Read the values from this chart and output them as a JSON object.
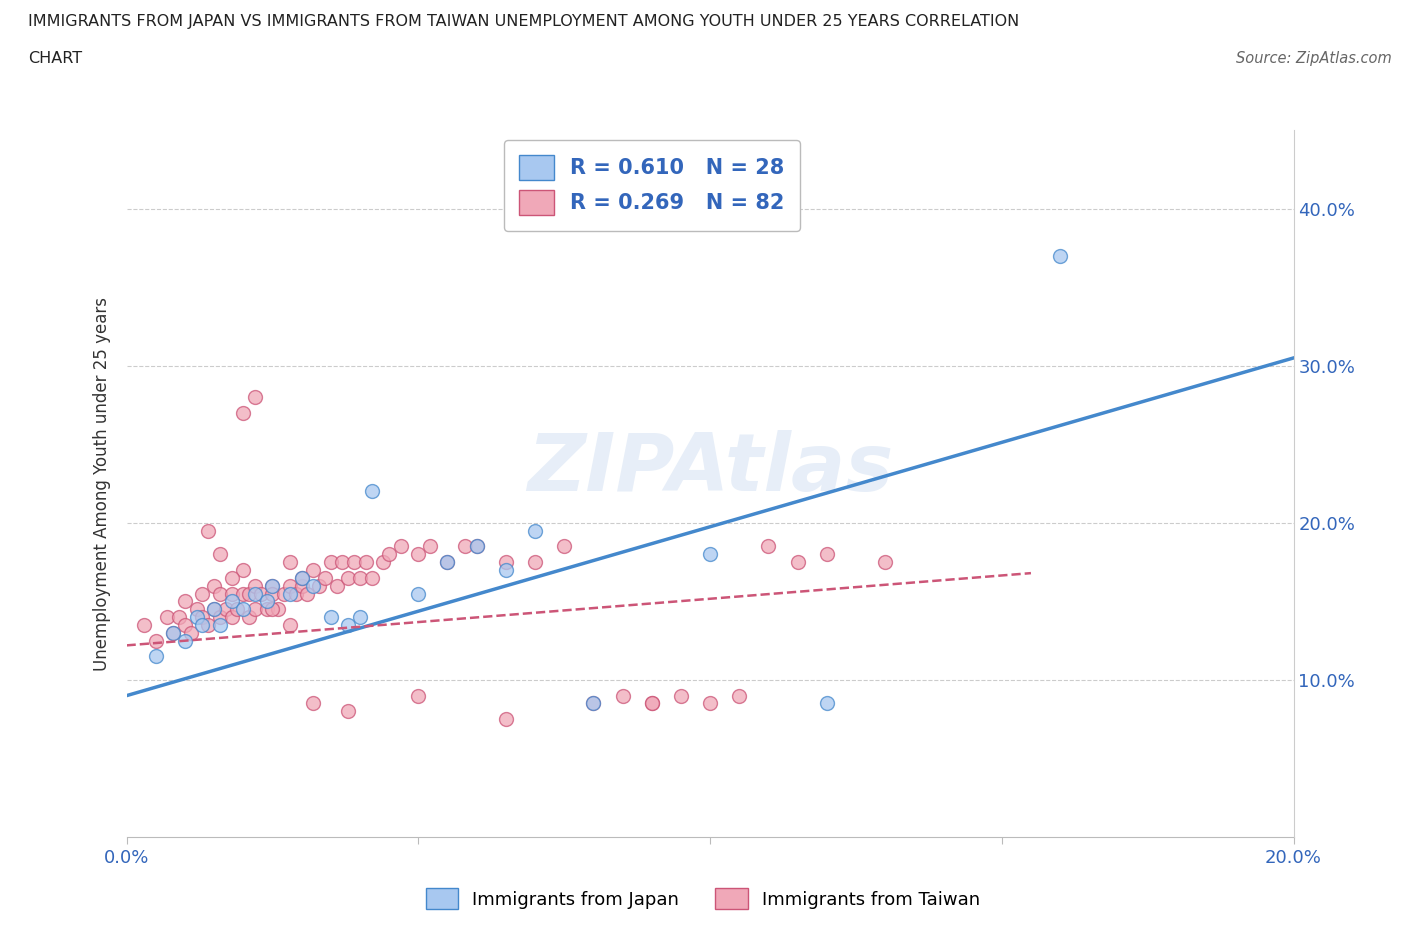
{
  "title_line1": "IMMIGRANTS FROM JAPAN VS IMMIGRANTS FROM TAIWAN UNEMPLOYMENT AMONG YOUTH UNDER 25 YEARS CORRELATION",
  "title_line2": "CHART",
  "source_text": "Source: ZipAtlas.com",
  "ylabel": "Unemployment Among Youth under 25 years",
  "xlim": [
    0.0,
    0.2
  ],
  "ylim": [
    0.0,
    0.45
  ],
  "xticks": [
    0.0,
    0.05,
    0.1,
    0.15,
    0.2
  ],
  "yticks": [
    0.0,
    0.1,
    0.2,
    0.3,
    0.4
  ],
  "r_japan": 0.61,
  "n_japan": 28,
  "r_taiwan": 0.269,
  "n_taiwan": 82,
  "japan_color": "#a8c8f0",
  "taiwan_color": "#f0a8b8",
  "japan_line_color": "#4488cc",
  "taiwan_line_color": "#cc5577",
  "japan_line_x0": 0.0,
  "japan_line_y0": 0.09,
  "japan_line_x1": 0.2,
  "japan_line_y1": 0.305,
  "taiwan_line_x0": 0.0,
  "taiwan_line_y0": 0.122,
  "taiwan_line_x1": 0.155,
  "taiwan_line_y1": 0.168,
  "japan_scatter_x": [
    0.005,
    0.008,
    0.01,
    0.012,
    0.013,
    0.015,
    0.016,
    0.018,
    0.02,
    0.022,
    0.024,
    0.025,
    0.028,
    0.03,
    0.032,
    0.035,
    0.038,
    0.04,
    0.042,
    0.05,
    0.055,
    0.06,
    0.065,
    0.07,
    0.08,
    0.1,
    0.12,
    0.16
  ],
  "japan_scatter_y": [
    0.115,
    0.13,
    0.125,
    0.14,
    0.135,
    0.145,
    0.135,
    0.15,
    0.145,
    0.155,
    0.15,
    0.16,
    0.155,
    0.165,
    0.16,
    0.14,
    0.135,
    0.14,
    0.22,
    0.155,
    0.175,
    0.185,
    0.17,
    0.195,
    0.085,
    0.18,
    0.085,
    0.37
  ],
  "taiwan_scatter_x": [
    0.003,
    0.005,
    0.007,
    0.008,
    0.009,
    0.01,
    0.01,
    0.011,
    0.012,
    0.013,
    0.013,
    0.014,
    0.015,
    0.015,
    0.016,
    0.016,
    0.017,
    0.018,
    0.018,
    0.019,
    0.02,
    0.02,
    0.021,
    0.021,
    0.022,
    0.022,
    0.023,
    0.024,
    0.025,
    0.025,
    0.026,
    0.027,
    0.028,
    0.028,
    0.029,
    0.03,
    0.03,
    0.031,
    0.032,
    0.033,
    0.034,
    0.035,
    0.036,
    0.037,
    0.038,
    0.039,
    0.04,
    0.041,
    0.042,
    0.044,
    0.045,
    0.047,
    0.05,
    0.052,
    0.055,
    0.058,
    0.06,
    0.065,
    0.07,
    0.075,
    0.08,
    0.085,
    0.09,
    0.095,
    0.1,
    0.105,
    0.11,
    0.115,
    0.12,
    0.13,
    0.014,
    0.016,
    0.018,
    0.02,
    0.022,
    0.025,
    0.028,
    0.032,
    0.038,
    0.05,
    0.065,
    0.09
  ],
  "taiwan_scatter_y": [
    0.135,
    0.125,
    0.14,
    0.13,
    0.14,
    0.135,
    0.15,
    0.13,
    0.145,
    0.14,
    0.155,
    0.135,
    0.145,
    0.16,
    0.14,
    0.155,
    0.145,
    0.14,
    0.155,
    0.145,
    0.155,
    0.17,
    0.14,
    0.155,
    0.145,
    0.16,
    0.155,
    0.145,
    0.16,
    0.155,
    0.145,
    0.155,
    0.16,
    0.175,
    0.155,
    0.16,
    0.165,
    0.155,
    0.17,
    0.16,
    0.165,
    0.175,
    0.16,
    0.175,
    0.165,
    0.175,
    0.165,
    0.175,
    0.165,
    0.175,
    0.18,
    0.185,
    0.18,
    0.185,
    0.175,
    0.185,
    0.185,
    0.175,
    0.175,
    0.185,
    0.085,
    0.09,
    0.085,
    0.09,
    0.085,
    0.09,
    0.185,
    0.175,
    0.18,
    0.175,
    0.195,
    0.18,
    0.165,
    0.27,
    0.28,
    0.145,
    0.135,
    0.085,
    0.08,
    0.09,
    0.075,
    0.085
  ]
}
